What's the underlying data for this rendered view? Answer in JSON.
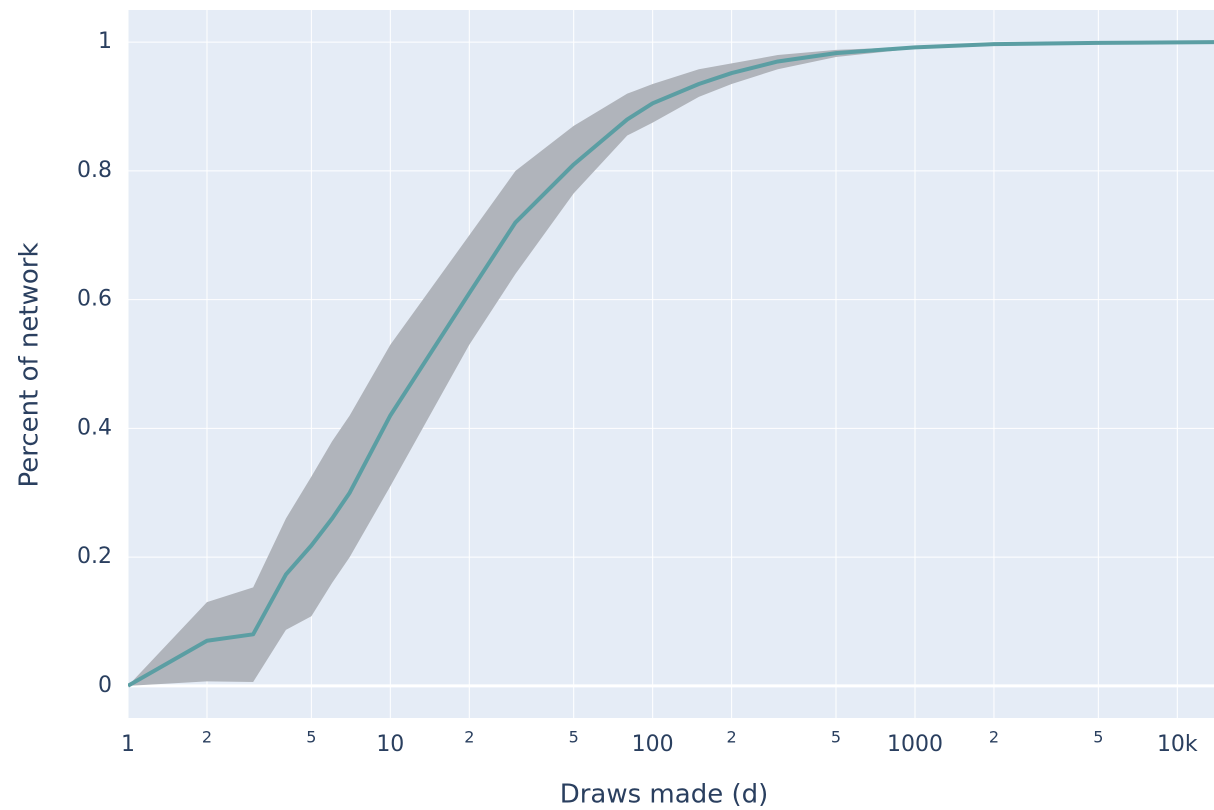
{
  "chart_data": {
    "type": "line",
    "x_label": "Draws made (d)",
    "y_label": "Percent of network",
    "x": [
      1,
      2,
      3,
      4,
      5,
      6,
      7,
      10,
      20,
      30,
      50,
      80,
      100,
      150,
      200,
      300,
      500,
      1000,
      2000,
      5000,
      13800
    ],
    "values": [
      0,
      0.07,
      0.08,
      0.173,
      0.218,
      0.26,
      0.3,
      0.42,
      0.61,
      0.72,
      0.81,
      0.88,
      0.905,
      0.935,
      0.952,
      0.97,
      0.983,
      0.992,
      0.997,
      0.999,
      1
    ],
    "upper": [
      0,
      0.13,
      0.153,
      0.26,
      0.325,
      0.38,
      0.42,
      0.53,
      0.7,
      0.8,
      0.87,
      0.92,
      0.935,
      0.958,
      0.967,
      0.98,
      0.988,
      0.993,
      0.998,
      0.999,
      1
    ],
    "lower": [
      0,
      0.007,
      0.006,
      0.087,
      0.108,
      0.16,
      0.2,
      0.31,
      0.53,
      0.64,
      0.765,
      0.855,
      0.875,
      0.915,
      0.935,
      0.958,
      0.977,
      0.99,
      0.996,
      0.999,
      1
    ],
    "color": "#5b9ea3",
    "band_color": "#b0b4bb",
    "x_log": true,
    "xlim": [
      1,
      13800
    ],
    "ylim": [
      -0.05,
      1.05
    ],
    "xticks": [
      1,
      {
        "value": 2,
        "label": "2"
      },
      {
        "value": 5,
        "label": "5"
      },
      10,
      {
        "value": 20,
        "label": "2"
      },
      {
        "value": 50,
        "label": "5"
      },
      100,
      {
        "value": 200,
        "label": "2"
      },
      {
        "value": 500,
        "label": "5"
      },
      1000,
      {
        "value": 2000,
        "label": "2"
      },
      {
        "value": 5000,
        "label": "5"
      },
      {
        "value": 10000,
        "label": "10k"
      }
    ],
    "yticks": [
      0,
      0.2,
      0.4,
      0.6,
      0.8,
      1
    ],
    "grid": true
  }
}
